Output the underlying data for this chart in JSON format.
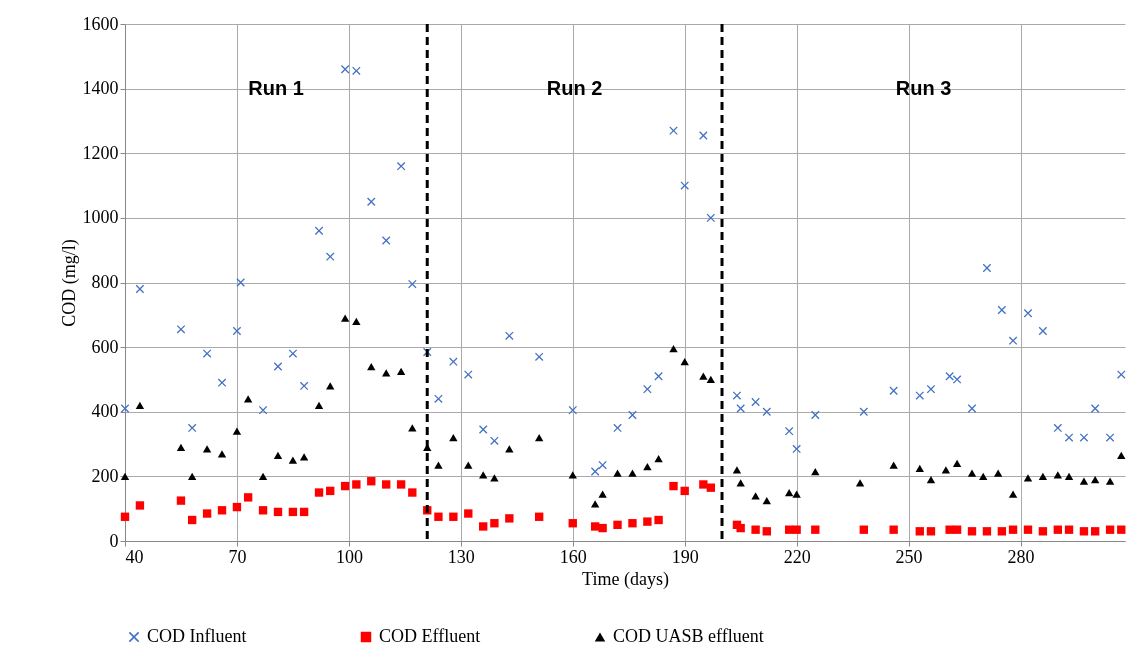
{
  "chart_data": {
    "type": "scatter",
    "xlabel": "Time (days)",
    "ylabel": "COD (mg/l)",
    "xlim": [
      40,
      308
    ],
    "xticks": [
      40,
      70,
      100,
      130,
      160,
      190,
      220,
      250,
      280
    ],
    "ylim": [
      0,
      1600
    ],
    "yticks": [
      0,
      200,
      400,
      600,
      800,
      1000,
      1200,
      1400,
      1600
    ],
    "grid": true,
    "legend": "bottom",
    "series": [
      {
        "name": "COD Influent",
        "color": "#4472c4",
        "marker": "cross",
        "x": [
          40,
          44,
          55,
          58,
          62,
          66,
          70,
          71,
          77,
          81,
          85,
          88,
          92,
          95,
          99,
          102,
          106,
          110,
          114,
          117,
          121,
          124,
          128,
          132,
          136,
          139,
          143,
          151,
          160,
          166,
          168,
          172,
          176,
          180,
          183,
          187,
          190,
          195,
          197,
          204,
          205,
          209,
          212,
          218,
          220,
          225,
          238,
          246,
          253,
          256,
          261,
          263,
          267,
          271,
          275,
          278,
          282,
          286,
          290,
          293,
          297,
          300,
          304,
          307
        ],
        "values": [
          410,
          780,
          655,
          350,
          580,
          490,
          650,
          800,
          405,
          540,
          580,
          480,
          960,
          880,
          1460,
          1455,
          1050,
          930,
          1160,
          795,
          585,
          440,
          555,
          515,
          345,
          310,
          635,
          570,
          405,
          215,
          235,
          350,
          390,
          470,
          510,
          1270,
          1100,
          1255,
          1000,
          450,
          410,
          430,
          400,
          340,
          285,
          390,
          400,
          465,
          450,
          470,
          510,
          500,
          410,
          845,
          715,
          620,
          705,
          650,
          350,
          320,
          320,
          410,
          320,
          515
        ]
      },
      {
        "name": "COD Effluent",
        "color": "#ff0000",
        "marker": "square",
        "x": [
          40,
          44,
          55,
          58,
          62,
          66,
          70,
          73,
          77,
          81,
          85,
          88,
          92,
          95,
          99,
          102,
          106,
          110,
          114,
          117,
          121,
          124,
          128,
          132,
          136,
          139,
          143,
          151,
          160,
          166,
          168,
          172,
          176,
          180,
          183,
          187,
          190,
          195,
          197,
          204,
          205,
          209,
          212,
          218,
          220,
          225,
          238,
          246,
          253,
          256,
          261,
          263,
          267,
          271,
          275,
          278,
          282,
          286,
          290,
          293,
          297,
          300,
          304,
          307
        ],
        "values": [
          75,
          110,
          125,
          65,
          85,
          95,
          105,
          135,
          95,
          90,
          90,
          90,
          150,
          155,
          170,
          175,
          185,
          175,
          175,
          150,
          95,
          75,
          75,
          85,
          45,
          55,
          70,
          75,
          55,
          45,
          40,
          50,
          55,
          60,
          65,
          170,
          155,
          175,
          165,
          50,
          40,
          35,
          30,
          35,
          35,
          35,
          35,
          35,
          30,
          30,
          35,
          35,
          30,
          30,
          30,
          35,
          35,
          30,
          35,
          35,
          30,
          30,
          35,
          35
        ]
      },
      {
        "name": "COD UASB effluent",
        "color": "#000000",
        "marker": "triangle",
        "x": [
          40,
          44,
          55,
          58,
          62,
          66,
          70,
          73,
          77,
          81,
          85,
          88,
          92,
          95,
          99,
          102,
          106,
          110,
          114,
          117,
          121,
          124,
          128,
          132,
          136,
          139,
          143,
          151,
          160,
          166,
          168,
          172,
          176,
          180,
          183,
          187,
          190,
          195,
          197,
          204,
          205,
          209,
          212,
          218,
          220,
          225,
          237,
          246,
          253,
          256,
          260,
          263,
          267,
          270,
          274,
          278,
          282,
          286,
          290,
          293,
          297,
          300,
          304,
          307
        ],
        "values": [
          200,
          420,
          290,
          200,
          285,
          270,
          340,
          440,
          200,
          265,
          250,
          260,
          420,
          480,
          690,
          680,
          540,
          520,
          525,
          350,
          290,
          235,
          320,
          235,
          205,
          195,
          285,
          320,
          205,
          115,
          145,
          210,
          210,
          230,
          255,
          595,
          555,
          510,
          500,
          220,
          180,
          140,
          125,
          150,
          145,
          215,
          180,
          235,
          225,
          190,
          220,
          240,
          210,
          200,
          210,
          145,
          195,
          200,
          205,
          200,
          185,
          190,
          185,
          265
        ]
      }
    ],
    "ref_lines": [
      {
        "axis": "x",
        "value": 121,
        "line_style": "dashed",
        "color": "#000000"
      },
      {
        "axis": "x",
        "value": 200,
        "line_style": "dashed",
        "color": "#000000"
      }
    ],
    "annotations": [
      "Run 1",
      "Run 2",
      "Run 3"
    ]
  }
}
